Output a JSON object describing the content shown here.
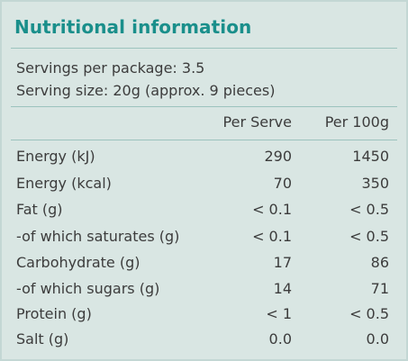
{
  "title": "Nutritional information",
  "servings_per_package": "Servings per package: 3.5",
  "serving_size": "Serving size: 20g (approx. 9 pieces)",
  "columns": [
    "Per Serve",
    "Per 100g"
  ],
  "rows": [
    {
      "label": "Energy (kJ)",
      "per_serve": "290",
      "per_100g": "1450"
    },
    {
      "label": "Energy (kcal)",
      "per_serve": "70",
      "per_100g": "350"
    },
    {
      "label": "Fat (g)",
      "per_serve": "< 0.1",
      "per_100g": "< 0.5"
    },
    {
      "label": "-of which saturates (g)",
      "per_serve": "< 0.1",
      "per_100g": "< 0.5"
    },
    {
      "label": "Carbohydrate (g)",
      "per_serve": "17",
      "per_100g": "86"
    },
    {
      "label": "-of which sugars (g)",
      "per_serve": "14",
      "per_100g": "71"
    },
    {
      "label": "Protein (g)",
      "per_serve": "< 1",
      "per_100g": "< 0.5"
    },
    {
      "label": "Salt (g)",
      "per_serve": "0.0",
      "per_100g": "0.0"
    }
  ],
  "colors": {
    "title": "#1a8f8b",
    "background": "#d9e6e3",
    "rule": "#9cc3be",
    "text": "#3c3c3c"
  }
}
